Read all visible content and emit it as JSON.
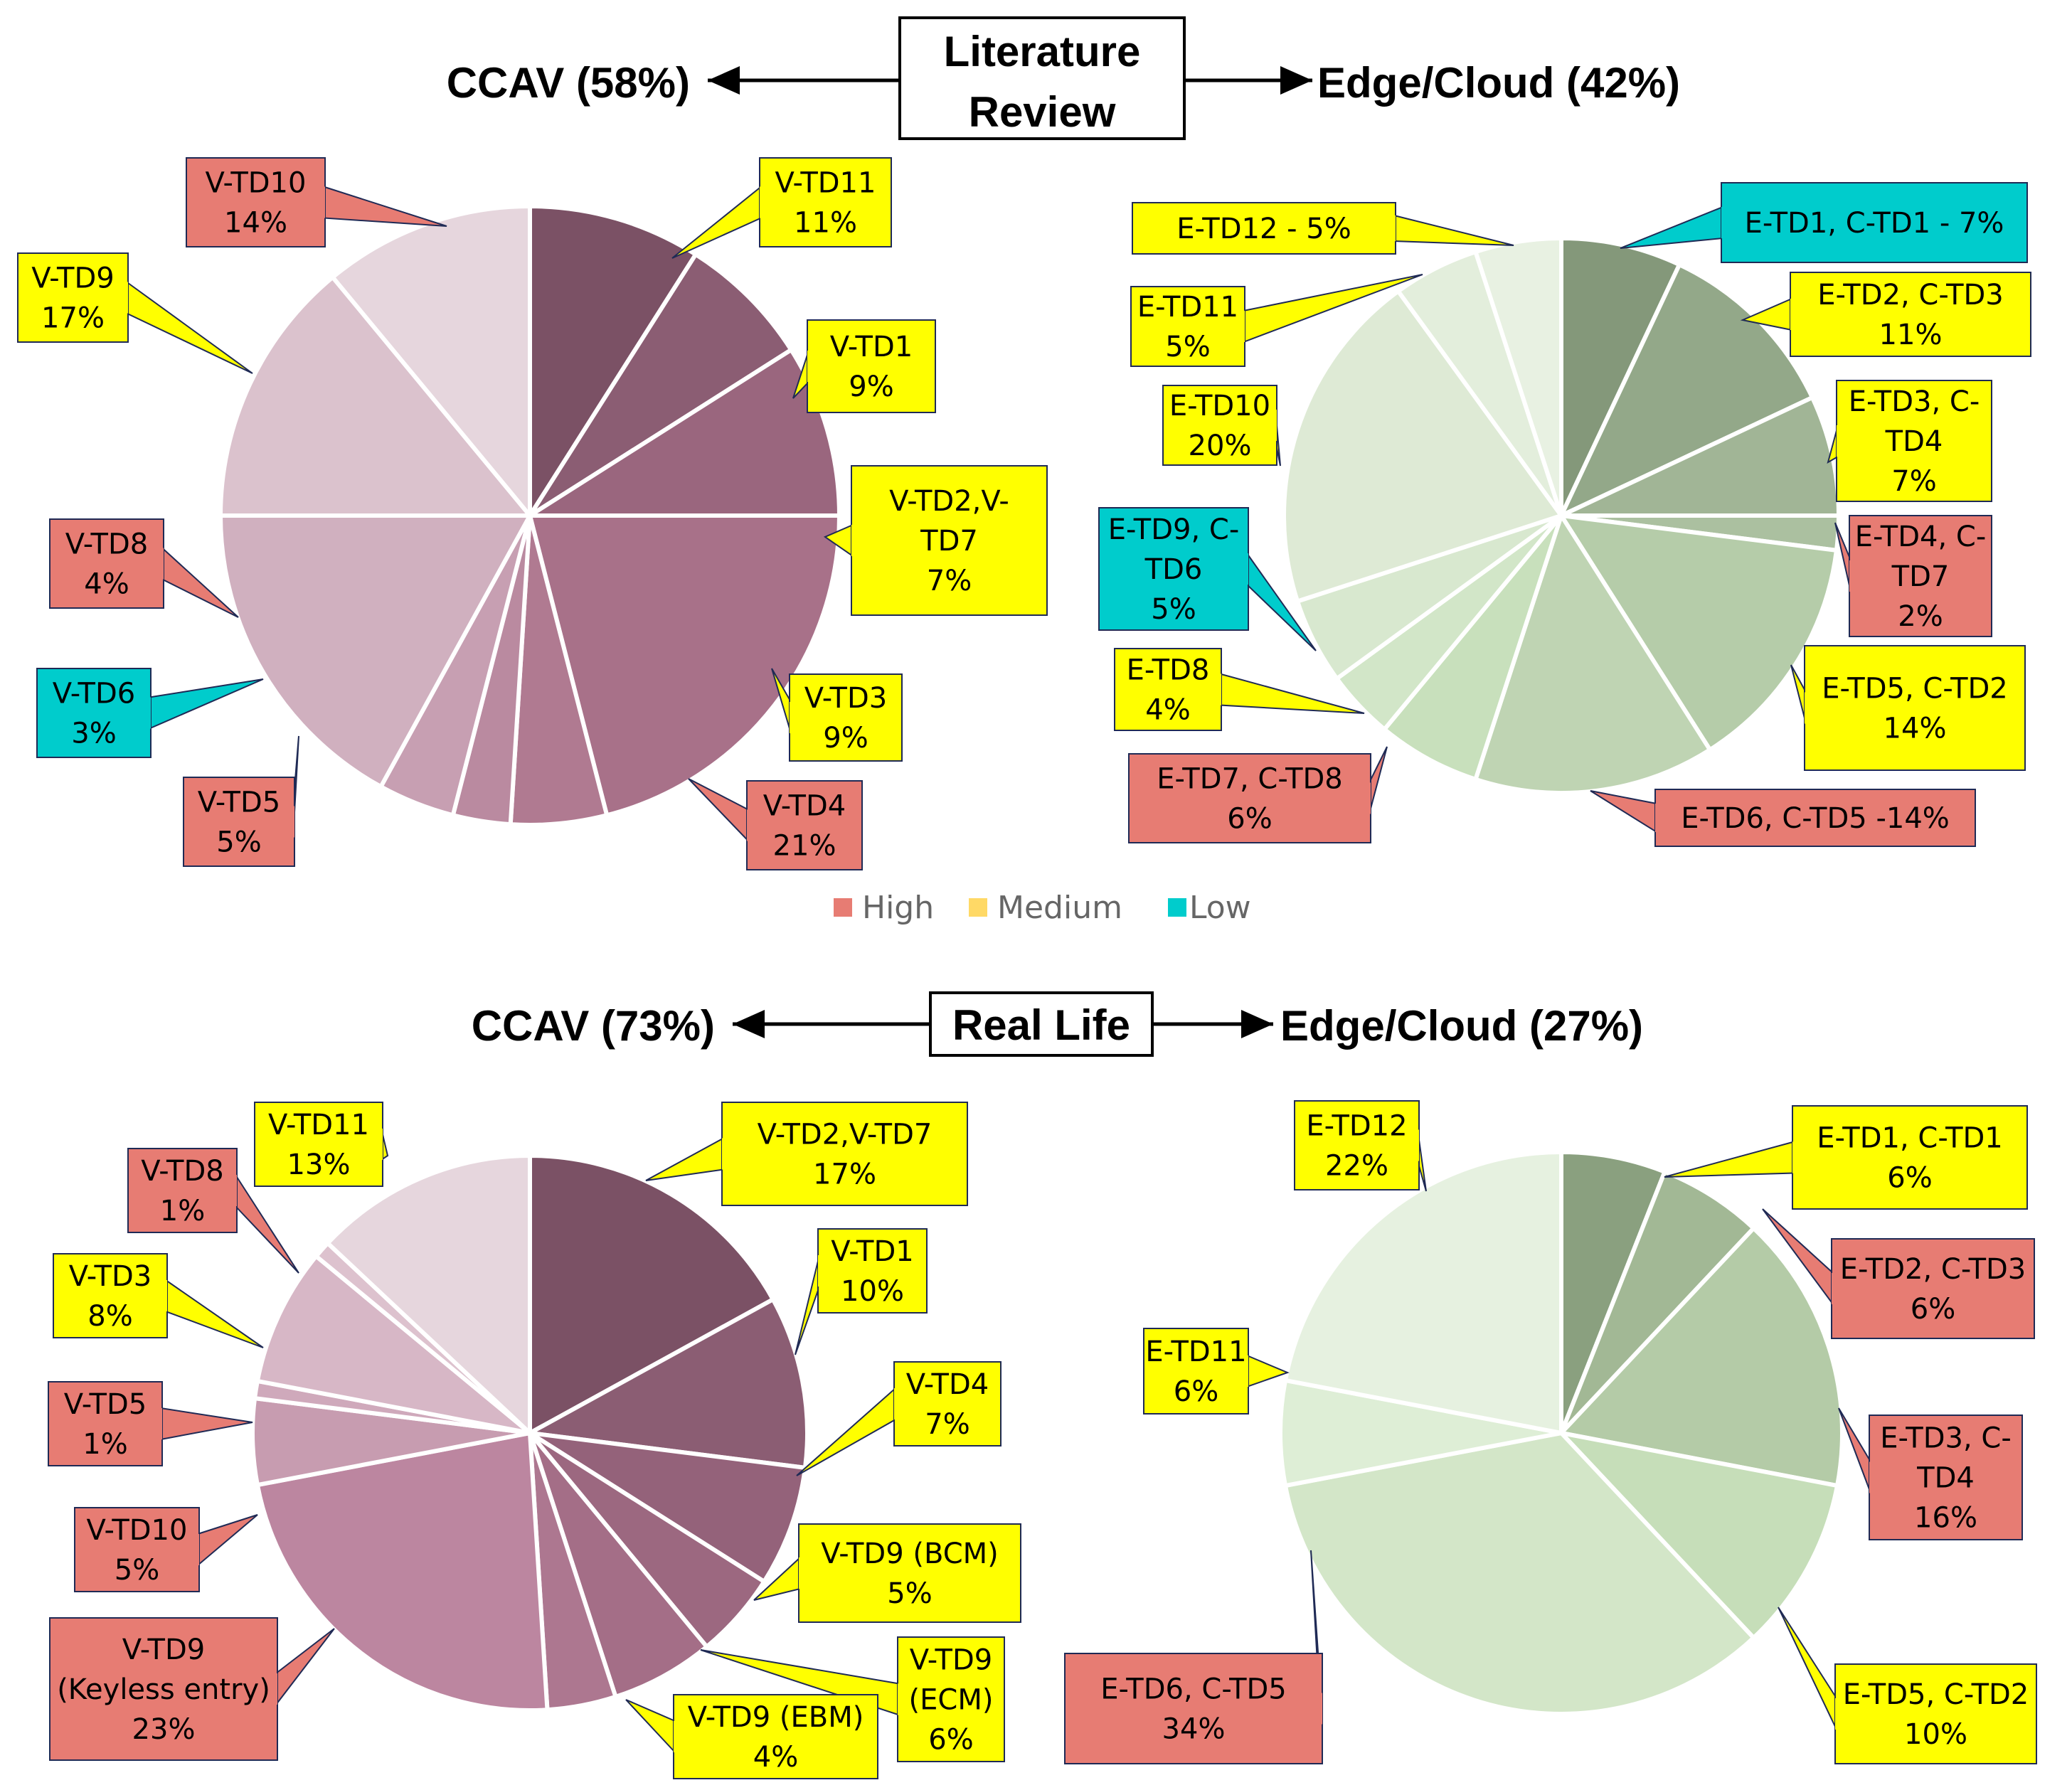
{
  "colors": {
    "High": "#e77c73",
    "Medium": "#ffff00",
    "Low": "#00cccc",
    "legend_medium": "#ffd966"
  },
  "headers": {
    "lit": {
      "box": [
        "Literature",
        "Review"
      ],
      "left": "CCAV (58%)",
      "right": "Edge/Cloud (42%)"
    },
    "real": {
      "box": [
        "Real Life"
      ],
      "left": "CCAV (73%)",
      "right": "Edge/Cloud (27%)"
    }
  },
  "legend": [
    {
      "label": "High",
      "color": "#e77c73"
    },
    {
      "label": "Medium",
      "color": "#ffd966"
    },
    {
      "label": "Low",
      "color": "#00cccc"
    }
  ],
  "chart_data": [
    {
      "type": "pie",
      "group": "Literature Review",
      "side": "CCAV (58%)",
      "slices": [
        {
          "label": [
            "V-TD1",
            "9%"
          ],
          "value": 9,
          "color": "#7b5165",
          "risk": "Medium"
        },
        {
          "label": [
            "V-TD2,V-",
            "TD7",
            "7%"
          ],
          "value": 7,
          "color": "#8b5d73",
          "risk": "Medium"
        },
        {
          "label": [
            "V-TD3",
            "9%"
          ],
          "value": 9,
          "color": "#9a667e",
          "risk": "Medium"
        },
        {
          "label": [
            "V-TD4",
            "21%"
          ],
          "value": 21,
          "color": "#a87189",
          "risk": "High"
        },
        {
          "label": [
            "V-TD5",
            "5%"
          ],
          "value": 5,
          "color": "#b07a91",
          "risk": "High"
        },
        {
          "label": [
            "V-TD6",
            "3%"
          ],
          "value": 3,
          "color": "#ba8aa0",
          "risk": "Low"
        },
        {
          "label": [
            "V-TD8",
            "4%"
          ],
          "value": 4,
          "color": "#c79fb2",
          "risk": "High"
        },
        {
          "label": [
            "V-TD9",
            "17%"
          ],
          "value": 17,
          "color": "#d0b0bf",
          "risk": "Medium"
        },
        {
          "label": [
            "V-TD10",
            "14%"
          ],
          "value": 14,
          "color": "#dbc2cd",
          "risk": "High"
        },
        {
          "label": [
            "V-TD11",
            "11%"
          ],
          "value": 11,
          "color": "#e6d6dd",
          "risk": "Medium"
        }
      ]
    },
    {
      "type": "pie",
      "group": "Literature Review",
      "side": "Edge/Cloud (42%)",
      "slices": [
        {
          "label": [
            "E-TD1, C-TD1 - 7%"
          ],
          "value": 7,
          "color": "#84987a",
          "risk": "Low"
        },
        {
          "label": [
            "E-TD2, C-TD3",
            "11%"
          ],
          "value": 11,
          "color": "#93a889",
          "risk": "Medium"
        },
        {
          "label": [
            "E-TD3, C-",
            "TD4",
            "7%"
          ],
          "value": 7,
          "color": "#a1b596",
          "risk": "Medium"
        },
        {
          "label": [
            "E-TD4, C-",
            "TD7",
            "2%"
          ],
          "value": 2,
          "color": "#abc0a0",
          "risk": "High"
        },
        {
          "label": [
            "E-TD5, C-TD2",
            "14%"
          ],
          "value": 14,
          "color": "#b5cca9",
          "risk": "Medium"
        },
        {
          "label": [
            "E-TD6, C-TD5 -14%"
          ],
          "value": 14,
          "color": "#bfd4b3",
          "risk": "High"
        },
        {
          "label": [
            "E-TD7, C-TD8",
            "6%"
          ],
          "value": 6,
          "color": "#c8e0bc",
          "risk": "High"
        },
        {
          "label": [
            "E-TD8",
            "4%"
          ],
          "value": 4,
          "color": "#d2e6c8",
          "risk": "Medium"
        },
        {
          "label": [
            "E-TD9, C-",
            "TD6",
            "5%"
          ],
          "value": 5,
          "color": "#d8e8cf",
          "risk": "Low"
        },
        {
          "label": [
            "E-TD10",
            "20%"
          ],
          "value": 20,
          "color": "#deead5",
          "risk": "Medium"
        },
        {
          "label": [
            "E-TD11",
            "5%"
          ],
          "value": 5,
          "color": "#e3eedc",
          "risk": "Medium"
        },
        {
          "label": [
            "E-TD12 - 5%"
          ],
          "value": 5,
          "color": "#e8f1e2",
          "risk": "Medium"
        }
      ]
    },
    {
      "type": "pie",
      "group": "Real Life",
      "side": "CCAV (73%)",
      "slices": [
        {
          "label": [
            "V-TD2,V-TD7",
            "17%"
          ],
          "value": 17,
          "color": "#7b5165",
          "risk": "Medium"
        },
        {
          "label": [
            "V-TD1",
            "10%"
          ],
          "value": 10,
          "color": "#8b5d73",
          "risk": "Medium"
        },
        {
          "label": [
            "V-TD4",
            "7%"
          ],
          "value": 7,
          "color": "#94627a",
          "risk": "Medium"
        },
        {
          "label": [
            "V-TD9 (BCM)",
            "5%"
          ],
          "value": 5,
          "color": "#9c6880",
          "risk": "Medium"
        },
        {
          "label": [
            "V-TD9",
            "(ECM)",
            "6%"
          ],
          "value": 6,
          "color": "#a46e87",
          "risk": "Medium"
        },
        {
          "label": [
            "V-TD9 (EBM)",
            "4%"
          ],
          "value": 4,
          "color": "#ad7790",
          "risk": "Medium"
        },
        {
          "label": [
            "V-TD9",
            "(Keyless entry)",
            "23%"
          ],
          "value": 23,
          "color": "#bc86a0",
          "risk": "High"
        },
        {
          "label": [
            "V-TD10",
            "5%"
          ],
          "value": 5,
          "color": "#c79cb0",
          "risk": "High"
        },
        {
          "label": [
            "V-TD5",
            "1%"
          ],
          "value": 1,
          "color": "#cfa9bb",
          "risk": "High"
        },
        {
          "label": [
            "V-TD3",
            "8%"
          ],
          "value": 8,
          "color": "#d7b7c6",
          "risk": "Medium"
        },
        {
          "label": [
            "V-TD8",
            "1%"
          ],
          "value": 1,
          "color": "#ddc2ce",
          "risk": "High"
        },
        {
          "label": [
            "V-TD11",
            "13%"
          ],
          "value": 13,
          "color": "#e6d6dd",
          "risk": "Medium"
        }
      ]
    },
    {
      "type": "pie",
      "group": "Real Life",
      "side": "Edge/Cloud (27%)",
      "slices": [
        {
          "label": [
            "E-TD1, C-TD1",
            "6%"
          ],
          "value": 6,
          "color": "#8aa07f",
          "risk": "Medium"
        },
        {
          "label": [
            "E-TD2, C-TD3",
            "6%"
          ],
          "value": 6,
          "color": "#a2b895",
          "risk": "High"
        },
        {
          "label": [
            "E-TD3, C-",
            "TD4",
            "16%"
          ],
          "value": 16,
          "color": "#b4cba7",
          "risk": "High"
        },
        {
          "label": [
            "E-TD5, C-TD2",
            "10%"
          ],
          "value": 10,
          "color": "#c6deb9",
          "risk": "Medium"
        },
        {
          "label": [
            "E-TD6, C-TD5",
            "34%"
          ],
          "value": 34,
          "color": "#d3e6c8",
          "risk": "High"
        },
        {
          "label": [
            "E-TD11",
            "6%"
          ],
          "value": 6,
          "color": "#deeed6",
          "risk": "Medium"
        },
        {
          "label": [
            "E-TD12",
            "22%"
          ],
          "value": 22,
          "color": "#e6f1e0",
          "risk": "Medium"
        }
      ]
    }
  ]
}
